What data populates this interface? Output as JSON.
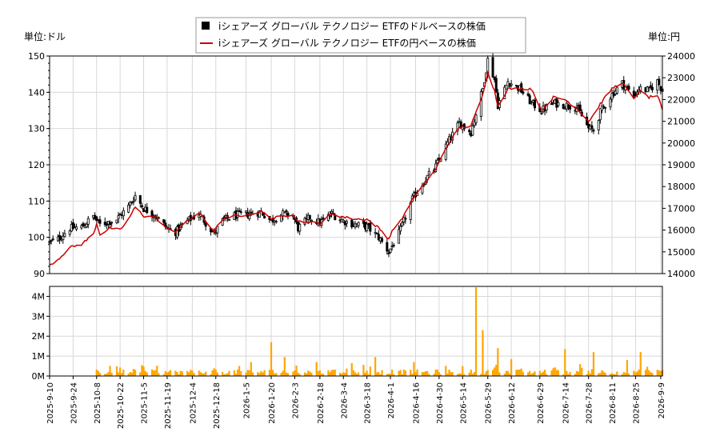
{
  "chart_data": [
    {
      "type": "candlestick",
      "legend": {
        "placement": "top-center",
        "entries": [
          {
            "label": "iシェアーズ グローバル テクノロジー ETFのドルベースの株価",
            "color": "#000000",
            "marker": "square"
          },
          {
            "label": "iシェアーズ グローバル テクノロジー ETFの円ベースの株価",
            "color": "#cc0000",
            "marker": "line"
          }
        ]
      },
      "y_left": {
        "label": "単位:ドル",
        "lim": [
          90,
          150
        ],
        "ticks": [
          90,
          100,
          110,
          120,
          130,
          140,
          150
        ]
      },
      "y_right": {
        "label": "単位:円",
        "lim": [
          14000,
          24000
        ],
        "ticks": [
          14000,
          15000,
          16000,
          17000,
          18000,
          19000,
          20000,
          21000,
          22000,
          23000,
          24000
        ]
      },
      "grid": true,
      "dollar_close_keypoints": [
        [
          "2025-09-10",
          98.6
        ],
        [
          "2025-09-15",
          99.5
        ],
        [
          "2025-09-22",
          102.5
        ],
        [
          "2025-09-29",
          102.8
        ],
        [
          "2025-10-06",
          105.8
        ],
        [
          "2025-10-10",
          103.5
        ],
        [
          "2025-10-20",
          105.0
        ],
        [
          "2025-10-27",
          108.5
        ],
        [
          "2025-10-31",
          111.5
        ],
        [
          "2025-11-05",
          108.0
        ],
        [
          "2025-11-12",
          106.0
        ],
        [
          "2025-11-19",
          102.5
        ],
        [
          "2025-11-24",
          101.5
        ],
        [
          "2025-12-01",
          104.5
        ],
        [
          "2025-12-08",
          106.5
        ],
        [
          "2025-12-12",
          104.0
        ],
        [
          "2025-12-17",
          101.0
        ],
        [
          "2025-12-22",
          104.5
        ],
        [
          "2025-12-29",
          106.0
        ],
        [
          "2026-01-07",
          106.5
        ],
        [
          "2026-01-14",
          107.0
        ],
        [
          "2026-01-20",
          104.5
        ],
        [
          "2026-01-26",
          106.5
        ],
        [
          "2026-02-02",
          106.0
        ],
        [
          "2026-02-05",
          102.5
        ],
        [
          "2026-02-12",
          105.5
        ],
        [
          "2026-02-18",
          104.0
        ],
        [
          "2026-02-25",
          106.5
        ],
        [
          "2026-03-04",
          104.5
        ],
        [
          "2026-03-11",
          103.5
        ],
        [
          "2026-03-18",
          103.0
        ],
        [
          "2026-03-25",
          100.0
        ],
        [
          "2026-03-31",
          96.0
        ],
        [
          "2026-04-03",
          98.5
        ],
        [
          "2026-04-07",
          102.0
        ],
        [
          "2026-04-14",
          110.5
        ],
        [
          "2026-04-21",
          115.5
        ],
        [
          "2026-04-28",
          119.5
        ],
        [
          "2026-05-05",
          126.0
        ],
        [
          "2026-05-12",
          131.5
        ],
        [
          "2026-05-19",
          129.0
        ],
        [
          "2026-05-26",
          141.0
        ],
        [
          "2026-05-29",
          149.0
        ],
        [
          "2026-06-02",
          143.5
        ],
        [
          "2026-06-04",
          136.5
        ],
        [
          "2026-06-10",
          143.0
        ],
        [
          "2026-06-17",
          141.0
        ],
        [
          "2026-06-24",
          137.0
        ],
        [
          "2026-06-30",
          135.0
        ],
        [
          "2026-07-07",
          137.0
        ],
        [
          "2026-07-14",
          136.5
        ],
        [
          "2026-07-21",
          136.0
        ],
        [
          "2026-07-28",
          130.0
        ],
        [
          "2026-07-31",
          129.5
        ],
        [
          "2026-08-04",
          134.5
        ],
        [
          "2026-08-11",
          139.5
        ],
        [
          "2026-08-17",
          142.5
        ],
        [
          "2026-08-24",
          139.0
        ],
        [
          "2026-08-27",
          141.0
        ],
        [
          "2026-09-02",
          140.5
        ],
        [
          "2026-09-07",
          143.0
        ],
        [
          "2026-09-10",
          140.5
        ]
      ],
      "yen_close_keypoints": [
        [
          "2025-09-10",
          14400
        ],
        [
          "2025-09-15",
          14650
        ],
        [
          "2025-09-22",
          15200
        ],
        [
          "2025-09-29",
          15350
        ],
        [
          "2025-10-06",
          15800
        ],
        [
          "2025-10-08",
          16300
        ],
        [
          "2025-10-10",
          15800
        ],
        [
          "2025-10-16",
          16100
        ],
        [
          "2025-10-22",
          16000
        ],
        [
          "2025-10-27",
          16500
        ],
        [
          "2025-10-31",
          17050
        ],
        [
          "2025-11-05",
          16650
        ],
        [
          "2025-11-12",
          16600
        ],
        [
          "2025-11-19",
          16050
        ],
        [
          "2025-11-24",
          15950
        ],
        [
          "2025-12-01",
          16400
        ],
        [
          "2025-12-08",
          16800
        ],
        [
          "2025-12-12",
          16400
        ],
        [
          "2025-12-17",
          15950
        ],
        [
          "2025-12-22",
          16500
        ],
        [
          "2025-12-29",
          16650
        ],
        [
          "2026-01-07",
          16700
        ],
        [
          "2026-01-14",
          16850
        ],
        [
          "2026-01-20",
          16550
        ],
        [
          "2026-01-26",
          16600
        ],
        [
          "2026-02-02",
          16750
        ],
        [
          "2026-02-05",
          16400
        ],
        [
          "2026-02-12",
          16350
        ],
        [
          "2026-02-18",
          16300
        ],
        [
          "2026-02-25",
          16750
        ],
        [
          "2026-03-04",
          16600
        ],
        [
          "2026-03-11",
          16500
        ],
        [
          "2026-03-18",
          16500
        ],
        [
          "2026-03-25",
          16100
        ],
        [
          "2026-03-31",
          15600
        ],
        [
          "2026-04-03",
          16100
        ],
        [
          "2026-04-07",
          16400
        ],
        [
          "2026-04-14",
          17400
        ],
        [
          "2026-04-21",
          18100
        ],
        [
          "2026-04-28",
          18800
        ],
        [
          "2026-05-05",
          19900
        ],
        [
          "2026-05-12",
          20700
        ],
        [
          "2026-05-19",
          20800
        ],
        [
          "2026-05-26",
          22200
        ],
        [
          "2026-05-29",
          23300
        ],
        [
          "2026-06-02",
          22400
        ],
        [
          "2026-06-04",
          21700
        ],
        [
          "2026-06-10",
          22500
        ],
        [
          "2026-06-17",
          22500
        ],
        [
          "2026-06-24",
          22500
        ],
        [
          "2026-06-30",
          21500
        ],
        [
          "2026-07-07",
          22100
        ],
        [
          "2026-07-14",
          22000
        ],
        [
          "2026-07-21",
          21600
        ],
        [
          "2026-07-28",
          21000
        ],
        [
          "2026-07-31",
          21300
        ],
        [
          "2026-08-04",
          21800
        ],
        [
          "2026-08-11",
          22500
        ],
        [
          "2026-08-17",
          22800
        ],
        [
          "2026-08-24",
          22000
        ],
        [
          "2026-08-27",
          22400
        ],
        [
          "2026-09-02",
          22100
        ],
        [
          "2026-09-07",
          22200
        ],
        [
          "2026-09-10",
          21500
        ]
      ]
    },
    {
      "type": "bar",
      "ylim": [
        0,
        4500000
      ],
      "y_ticks": [
        {
          "value": 0,
          "label": "0M"
        },
        {
          "value": 1000000,
          "label": "1M"
        },
        {
          "value": 2000000,
          "label": "2M"
        },
        {
          "value": 3000000,
          "label": "3M"
        },
        {
          "value": 4000000,
          "label": "4M"
        }
      ],
      "volume_start": "2025-10-08",
      "volume_spikes": [
        [
          "2026-01-20",
          1700000
        ],
        [
          "2026-01-28",
          950000
        ],
        [
          "2026-03-23",
          950000
        ],
        [
          "2026-04-15",
          700000
        ],
        [
          "2026-05-22",
          4450000
        ],
        [
          "2026-05-26",
          2300000
        ],
        [
          "2026-06-04",
          1400000
        ],
        [
          "2026-07-14",
          1350000
        ],
        [
          "2026-07-31",
          1200000
        ],
        [
          "2026-08-28",
          1200000
        ],
        [
          "2026-06-12",
          850000
        ],
        [
          "2026-02-16",
          700000
        ],
        [
          "2026-03-09",
          650000
        ],
        [
          "2026-01-08",
          700000
        ],
        [
          "2026-08-20",
          800000
        ]
      ],
      "grid": true
    }
  ],
  "x_axis": {
    "start": "2025-09-10",
    "end": "2026-09-10",
    "tick_labels": [
      "2025-9-10",
      "2025-9-24",
      "2025-10-8",
      "2025-10-22",
      "2025-11-5",
      "2025-11-19",
      "2025-12-4",
      "2025-12-18",
      "2026-1-5",
      "2026-1-20",
      "2026-2-3",
      "2026-2-18",
      "2026-3-4",
      "2026-3-18",
      "2026-4-1",
      "2026-4-16",
      "2026-4-30",
      "2026-5-14",
      "2026-5-29",
      "2026-6-12",
      "2026-6-29",
      "2026-7-14",
      "2026-7-28",
      "2026-8-11",
      "2026-8-25",
      "2026-9-9"
    ]
  },
  "colors": {
    "candle_up": "#ffffff",
    "candle_down": "#000000",
    "yen_line": "#cc0000",
    "volume": "#ffa500",
    "grid": "#d8d8d8"
  }
}
